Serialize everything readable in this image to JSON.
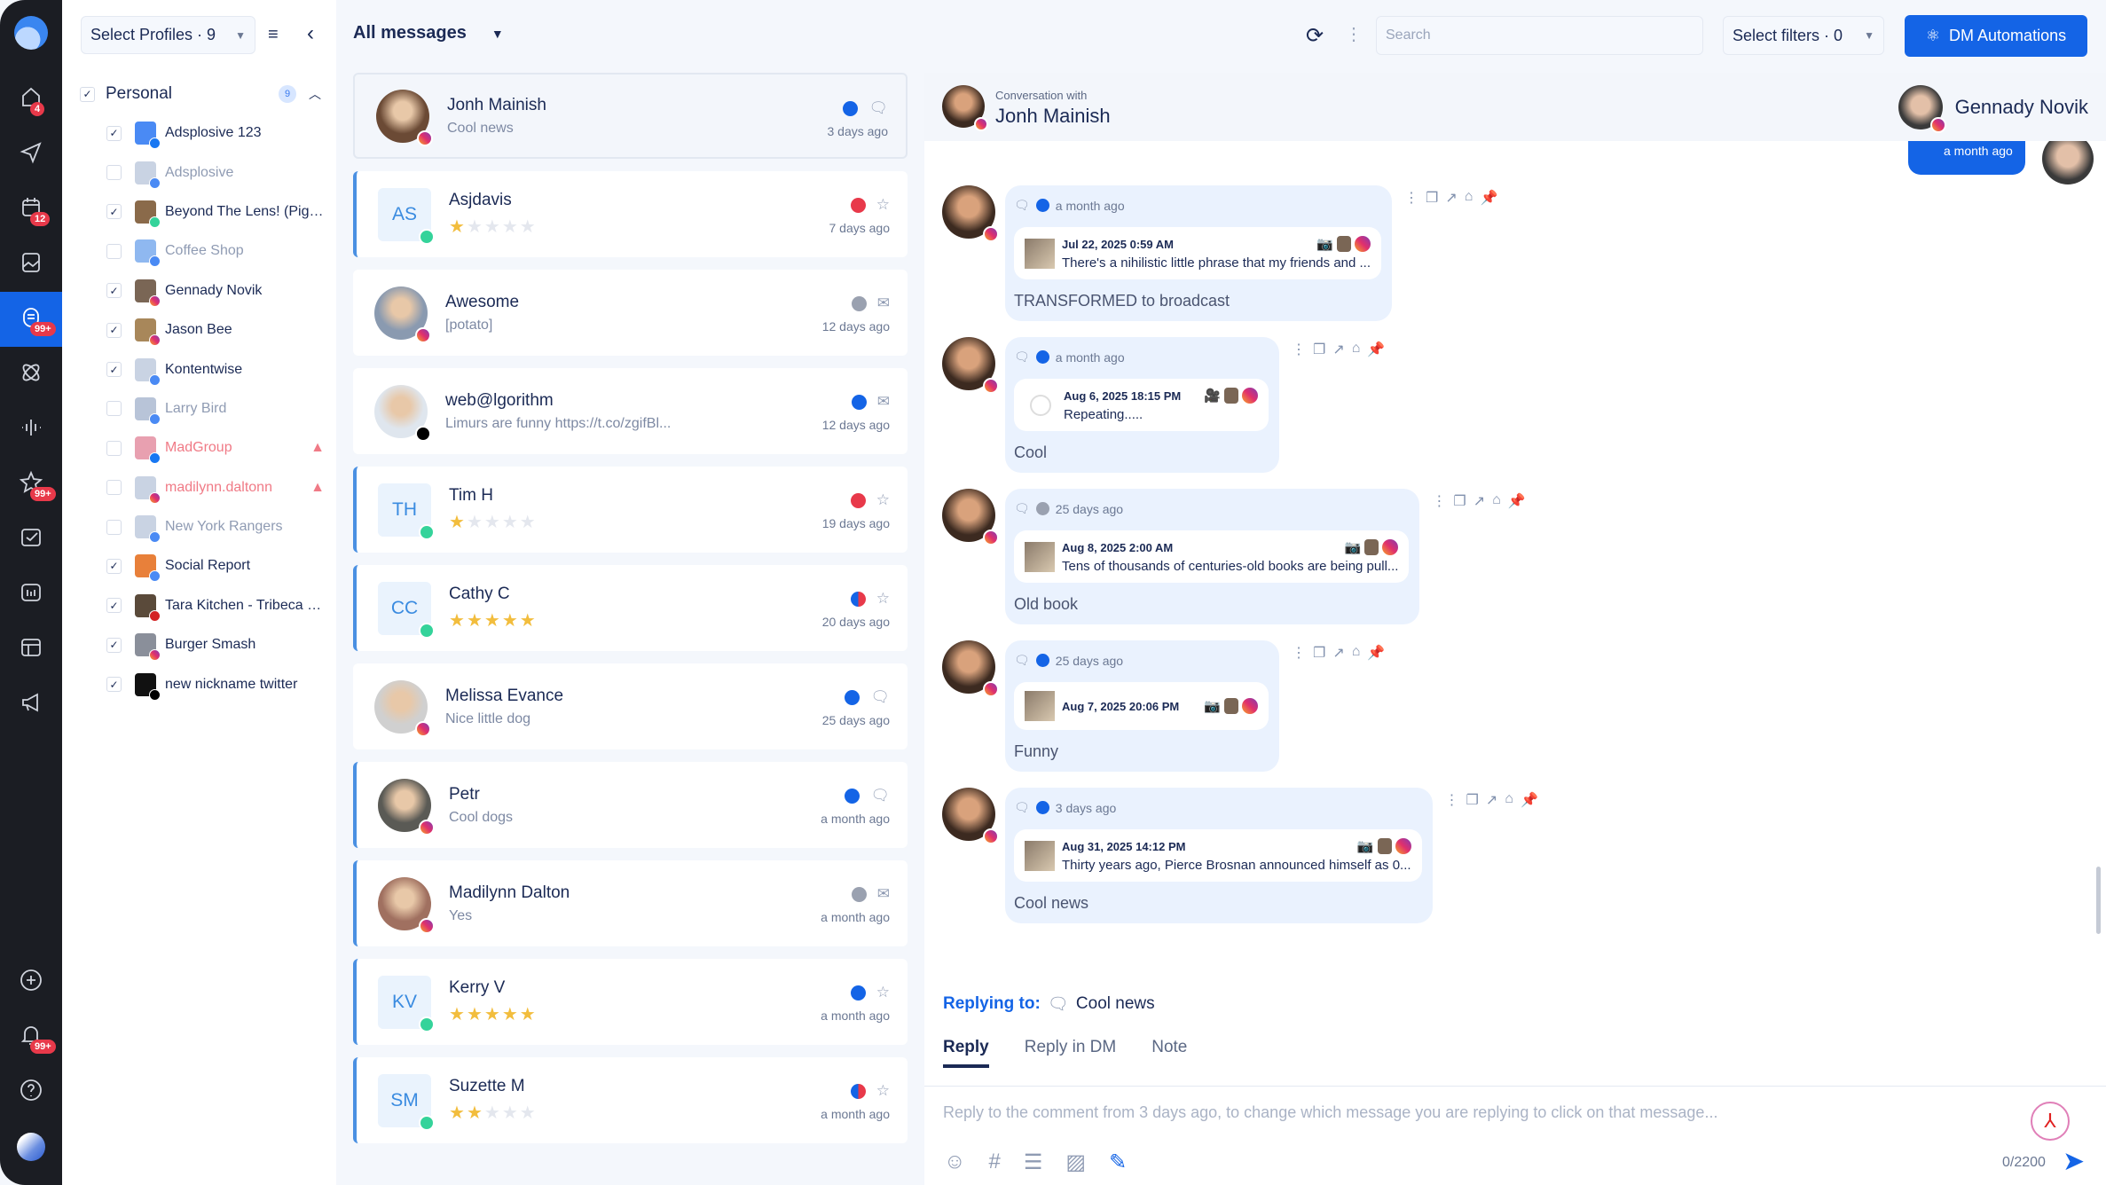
{
  "colors": {
    "accent": "#1464e6",
    "rail": "#1b1d23",
    "negative": "#e8394a",
    "star": "#f2bd3d"
  },
  "rail": {
    "items": [
      {
        "icon": "home-icon",
        "badge": "4"
      },
      {
        "icon": "send-icon",
        "badge": null
      },
      {
        "icon": "calendar-icon",
        "badge": "12"
      },
      {
        "icon": "media-library-icon",
        "badge": null
      },
      {
        "icon": "inbox-icon",
        "badge": "99+",
        "active": true
      },
      {
        "icon": "automation-icon",
        "badge": null
      },
      {
        "icon": "listening-waveform-icon",
        "badge": null
      },
      {
        "icon": "reviews-star-icon",
        "badge": "99+"
      },
      {
        "icon": "tasks-icon",
        "badge": null
      },
      {
        "icon": "reports-icon",
        "badge": null
      },
      {
        "icon": "layout-icon",
        "badge": null
      },
      {
        "icon": "megaphone-icon",
        "badge": null
      }
    ],
    "bottom": [
      {
        "icon": "add-circle-icon",
        "badge": null
      },
      {
        "icon": "bell-icon",
        "badge": "99+"
      },
      {
        "icon": "help-icon",
        "badge": null
      }
    ]
  },
  "profiles": {
    "select_label": "Select Profiles · 9",
    "group": {
      "label": "Personal",
      "count": "9",
      "checked": true
    },
    "items": [
      {
        "name": "Adsplosive 123",
        "checked": true,
        "network": "fb",
        "color": "#4a8af4"
      },
      {
        "name": "Adsplosive",
        "checked": false,
        "network": "gb",
        "color": "#c9d3e3"
      },
      {
        "name": "Beyond The Lens! (Pigeo...",
        "checked": true,
        "network": "ta",
        "color": "#8a6a4a"
      },
      {
        "name": "Coffee Shop",
        "checked": false,
        "network": "gb",
        "color": "#8fb8f0"
      },
      {
        "name": "Gennady Novik",
        "checked": true,
        "network": "ig",
        "color": "#7a6655"
      },
      {
        "name": "Jason Bee",
        "checked": true,
        "network": "ig",
        "color": "#a8875a"
      },
      {
        "name": "Kontentwise",
        "checked": true,
        "network": "gb",
        "color": "#c9d3e3"
      },
      {
        "name": "Larry Bird",
        "checked": false,
        "network": "gb",
        "color": "#b8c4d8"
      },
      {
        "name": "MadGroup",
        "checked": false,
        "network": "fb",
        "color": "#e8a0b0",
        "warning": true
      },
      {
        "name": "madilynn.daltonn",
        "checked": false,
        "network": "ig",
        "color": "#c9d3e3",
        "warning": true
      },
      {
        "name": "New York Rangers",
        "checked": false,
        "network": "gb",
        "color": "#c9d3e3"
      },
      {
        "name": "Social Report",
        "checked": true,
        "network": "gb",
        "color": "#e8803a"
      },
      {
        "name": "Tara Kitchen - Tribeca N...",
        "checked": true,
        "network": "yelp",
        "color": "#5a4a3a"
      },
      {
        "name": "Burger Smash",
        "checked": true,
        "network": "ig",
        "color": "#8a8f9a"
      },
      {
        "name": "new nickname twitter",
        "checked": true,
        "network": "x",
        "color": "#111111"
      }
    ]
  },
  "topbar": {
    "view": "All messages",
    "search_placeholder": "Search",
    "filters_label": "Select filters · 0",
    "dm_automations": "DM Automations"
  },
  "messages": [
    {
      "name": "Jonh Mainish",
      "preview": "Cool news",
      "time": "3 days ago",
      "sentiment": "pos",
      "type": "comment",
      "network": "ig",
      "active": true,
      "photo": "#6b4a35"
    },
    {
      "name": "Asjdavis",
      "initials": "AS",
      "rating": 1,
      "time": "7 days ago",
      "sentiment": "neg",
      "type": "review",
      "network": "ta"
    },
    {
      "name": "Awesome",
      "preview": "[potato]",
      "time": "12 days ago",
      "sentiment": "neu",
      "type": "dm",
      "network": "ig",
      "photo": "#8a9ab0"
    },
    {
      "name": "web@lgorithm",
      "preview": "Limurs are funny https://t.co/zgifBl...",
      "time": "12 days ago",
      "sentiment": "pos",
      "type": "dm",
      "network": "x",
      "photo": "#dfe6ee"
    },
    {
      "name": "Tim H",
      "initials": "TH",
      "rating": 1,
      "time": "19 days ago",
      "sentiment": "neg",
      "type": "review",
      "network": "ta"
    },
    {
      "name": "Cathy C",
      "initials": "CC",
      "rating": 5,
      "time": "20 days ago",
      "sentiment": "mix",
      "type": "review",
      "network": "ta"
    },
    {
      "name": "Melissa Evance",
      "preview": "Nice little dog",
      "time": "25 days ago",
      "sentiment": "pos",
      "type": "comment",
      "network": "ig",
      "photo": "#d0d0d0"
    },
    {
      "name": "Petr",
      "preview": "Cool dogs",
      "time": "a month ago",
      "sentiment": "pos",
      "type": "comment",
      "network": "ig",
      "photo": "#5a5a55",
      "bordered": true
    },
    {
      "name": "Madilynn Dalton",
      "preview": "Yes",
      "time": "a month ago",
      "sentiment": "neu",
      "type": "dm",
      "network": "ig",
      "photo": "#a07060",
      "bordered": true
    },
    {
      "name": "Kerry V",
      "initials": "KV",
      "rating": 5,
      "time": "a month ago",
      "sentiment": "pos",
      "type": "review",
      "network": "ta"
    },
    {
      "name": "Suzette M",
      "initials": "SM",
      "rating": 2,
      "time": "a month ago",
      "sentiment": "mix",
      "type": "review",
      "network": "ta"
    }
  ],
  "conversation": {
    "subtitle": "Conversation with",
    "contact": "Jonh Mainish",
    "account": "Gennady Novik",
    "sent_top_time": "a month ago",
    "thread": [
      {
        "time": "a month ago",
        "sentiment": "pos",
        "post_date": "Jul 22, 2025 0:59 AM",
        "post_text": "There's a nihilistic little phrase that my friends and ...",
        "media": "photo",
        "reply": "TRANSFORMED to broadcast"
      },
      {
        "time": "a month ago",
        "sentiment": "pos",
        "post_date": "Aug 6, 2025 18:15 PM",
        "post_text": "Repeating.....",
        "media": "video",
        "reply": "Cool",
        "loading": true
      },
      {
        "time": "25 days ago",
        "sentiment": "neu",
        "post_date": "Aug 8, 2025 2:00 AM",
        "post_text": "Tens of thousands of centuries-old books are being pull...",
        "media": "photo",
        "reply": "Old book"
      },
      {
        "time": "25 days ago",
        "sentiment": "pos",
        "post_date": "Aug 7, 2025 20:06 PM",
        "post_text": "",
        "media": "photo",
        "reply": "Funny"
      },
      {
        "time": "3 days ago",
        "sentiment": "pos",
        "post_date": "Aug 31, 2025 14:12 PM",
        "post_text": "Thirty years ago, Pierce Brosnan announced himself as 0...",
        "media": "photo",
        "reply": "Cool news"
      }
    ]
  },
  "composer": {
    "replying_label": "Replying to:",
    "replying_target": "Cool news",
    "tabs": [
      "Reply",
      "Reply in DM",
      "Note"
    ],
    "active_tab": 0,
    "placeholder": "Reply to the comment from 3 days ago, to change which message you are replying to click on that message...",
    "counter": "0/2200"
  }
}
